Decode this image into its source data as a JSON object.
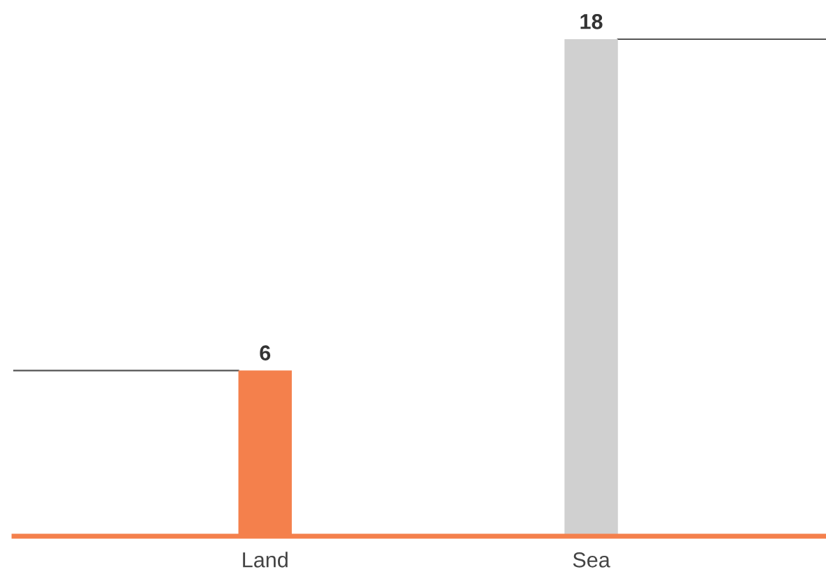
{
  "chart_data": {
    "type": "bar",
    "categories": [
      "Land",
      "Sea"
    ],
    "values": [
      6,
      18
    ],
    "colors": [
      "#f4804c",
      "#d0d0d0"
    ],
    "data_labels": true,
    "tick_labels": "x"
  }
}
